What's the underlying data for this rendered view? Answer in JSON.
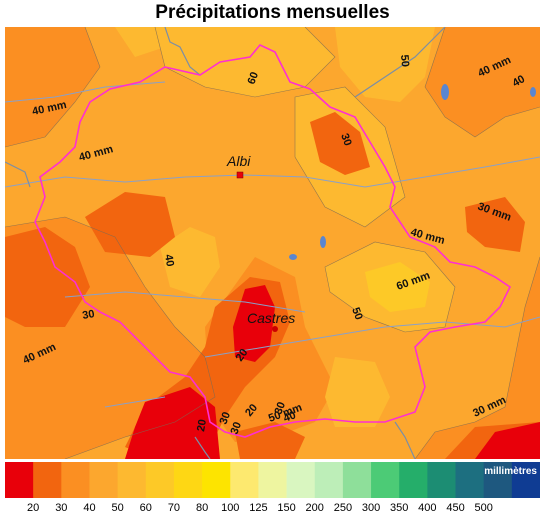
{
  "title": "Précipitations mensuelles",
  "legend": {
    "unit": "millimètres",
    "colors": [
      "#e8000a",
      "#f2650f",
      "#fb8f22",
      "#fca72e",
      "#fdb930",
      "#fdc927",
      "#fed714",
      "#fde400",
      "#fde96f",
      "#eef5a0",
      "#d9f6c0",
      "#bdeeb8",
      "#8edf9a",
      "#4ccb76",
      "#25ae6a",
      "#1c8d73",
      "#1d6f80",
      "#1e587f",
      "#0f3c93"
    ],
    "ticks": [
      "20",
      "30",
      "40",
      "50",
      "60",
      "70",
      "80",
      "100",
      "125",
      "150",
      "200",
      "250",
      "300",
      "350",
      "400",
      "450",
      "500"
    ]
  },
  "cities": [
    {
      "name": "Albi"
    },
    {
      "name": "Castres"
    }
  ],
  "contour_labels": [
    "40 mm",
    "40 mm",
    "40 mm",
    "40 mm",
    "40 mm",
    "40",
    "40",
    "30 mm",
    "30",
    "30",
    "30",
    "30 mm",
    "50",
    "50",
    "50 mm",
    "60 mm",
    "60",
    "20",
    "20",
    "20",
    "30",
    "30",
    "40"
  ]
}
